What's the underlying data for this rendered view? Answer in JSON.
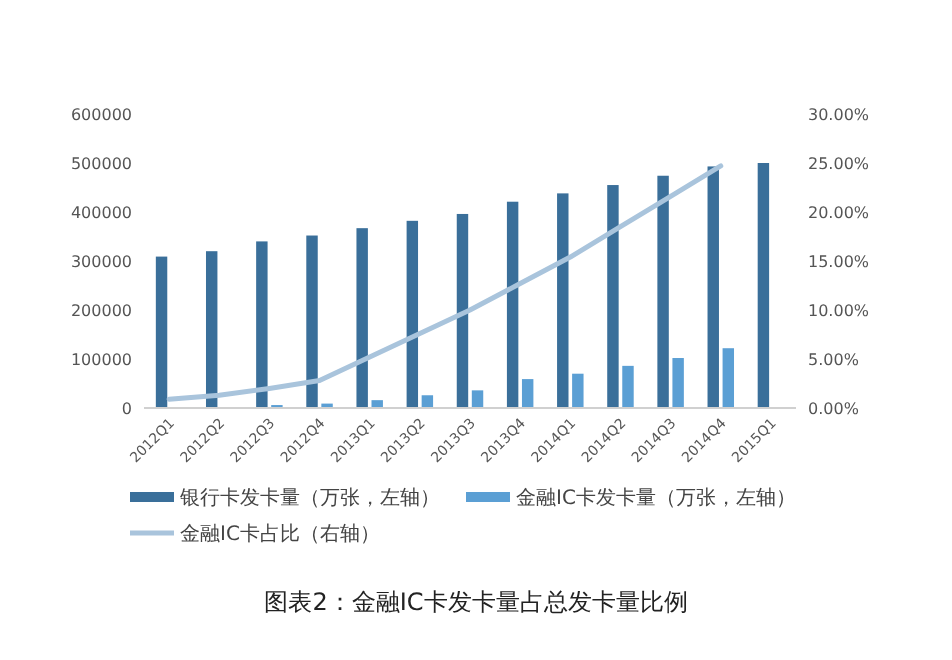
{
  "chart_data": {
    "type": "bar",
    "title": "图表2：金融IC卡发卡量占总发卡量比例",
    "categories": [
      "2012Q1",
      "2012Q2",
      "2012Q3",
      "2012Q4",
      "2013Q1",
      "2013Q2",
      "2013Q3",
      "2013Q4",
      "2014Q1",
      "2014Q2",
      "2014Q3",
      "2014Q4",
      "2015Q1"
    ],
    "series": [
      {
        "name": "银行卡发卡量（万张，左轴）",
        "color": "#3a6f9a",
        "values": [
          309000,
          320000,
          340000,
          352000,
          367000,
          382000,
          396000,
          421000,
          438000,
          455000,
          474000,
          493000,
          500000
        ]
      },
      {
        "name": "金融IC卡发卡量（万张，左轴）",
        "color": "#5b9fd4",
        "values": [
          2000,
          null,
          6000,
          9000,
          16000,
          26000,
          36000,
          59000,
          70000,
          86000,
          102000,
          122000,
          null
        ]
      },
      {
        "name": "金融IC卡占比（右轴）",
        "type": "line",
        "axis": "y2",
        "color": "#a9c4dc",
        "values": [
          0.9,
          1.3,
          2.0,
          2.8,
          5.2,
          7.6,
          10.0,
          12.7,
          15.4,
          18.5,
          21.6,
          24.7,
          null
        ]
      }
    ],
    "ylim": [
      0,
      600000
    ],
    "yticks": [
      0,
      100000,
      200000,
      300000,
      400000,
      500000,
      600000
    ],
    "y2lim": [
      0,
      30
    ],
    "y2ticks": [
      {
        "value": 0,
        "label": "0.00%"
      },
      {
        "value": 5,
        "label": "5.00%"
      },
      {
        "value": 10,
        "label": "10.00%"
      },
      {
        "value": 15,
        "label": "15.00%"
      },
      {
        "value": 20,
        "label": "20.00%"
      },
      {
        "value": 25,
        "label": "25.00%"
      },
      {
        "value": 30,
        "label": "30.00%"
      }
    ],
    "grid": false,
    "legend": "bottom",
    "marker": "none"
  }
}
